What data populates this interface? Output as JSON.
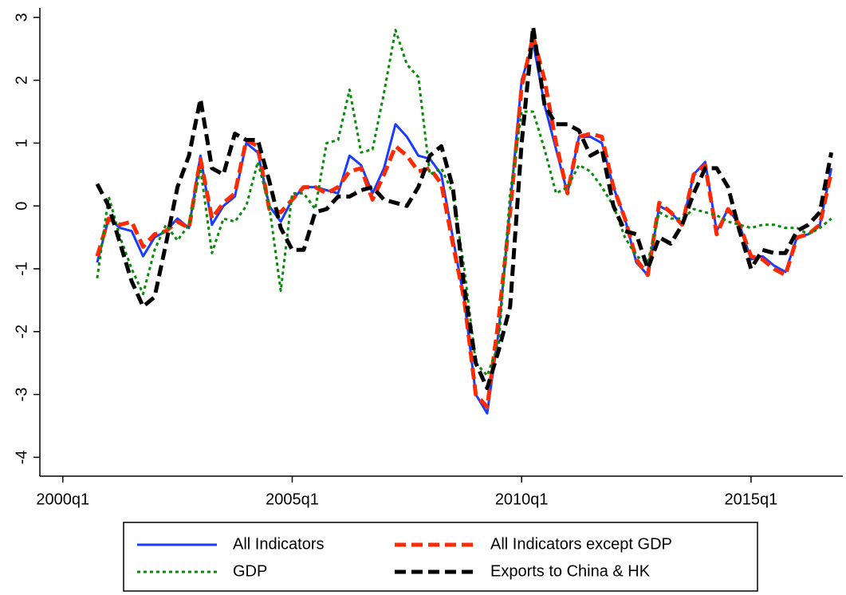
{
  "chart_data": {
    "type": "line",
    "x": [
      "2000q4",
      "2001q1",
      "2001q2",
      "2001q3",
      "2001q4",
      "2002q1",
      "2002q2",
      "2002q3",
      "2002q4",
      "2003q1",
      "2003q2",
      "2003q3",
      "2003q4",
      "2004q1",
      "2004q2",
      "2004q3",
      "2004q4",
      "2005q1",
      "2005q2",
      "2005q3",
      "2005q4",
      "2006q1",
      "2006q2",
      "2006q3",
      "2006q4",
      "2007q1",
      "2007q2",
      "2007q3",
      "2007q4",
      "2008q1",
      "2008q2",
      "2008q3",
      "2008q4",
      "2009q1",
      "2009q2",
      "2009q3",
      "2009q4",
      "2010q1",
      "2010q2",
      "2010q3",
      "2010q4",
      "2011q1",
      "2011q2",
      "2011q3",
      "2011q4",
      "2012q1",
      "2012q2",
      "2012q3",
      "2012q4",
      "2013q1",
      "2013q2",
      "2013q3",
      "2013q4",
      "2014q1",
      "2014q2",
      "2014q3",
      "2014q4",
      "2015q1",
      "2015q2",
      "2015q3",
      "2015q4",
      "2016q1",
      "2016q2",
      "2016q3",
      "2016q4"
    ],
    "series": [
      {
        "name": "All Indicators",
        "color": "#1a3cff",
        "values": [
          -0.9,
          -0.2,
          -0.35,
          -0.4,
          -0.8,
          -0.5,
          -0.4,
          -0.2,
          -0.35,
          0.8,
          -0.3,
          0.0,
          0.15,
          1.0,
          0.85,
          0.0,
          -0.25,
          0.1,
          0.3,
          0.3,
          0.25,
          0.2,
          0.8,
          0.65,
          0.2,
          0.6,
          1.3,
          1.1,
          0.8,
          0.75,
          0.5,
          -0.5,
          -1.5,
          -3.0,
          -3.3,
          -2.0,
          0.0,
          2.0,
          2.6,
          1.6,
          0.9,
          0.2,
          1.1,
          1.1,
          1.0,
          0.3,
          -0.2,
          -0.9,
          -1.1,
          0.0,
          -0.1,
          -0.3,
          0.5,
          0.7,
          -0.4,
          -0.05,
          -0.3,
          -0.85,
          -0.8,
          -0.95,
          -1.05,
          -0.5,
          -0.45,
          -0.3,
          0.6
        ]
      },
      {
        "name": "All Indicators except GDP",
        "color": "#ff2a00",
        "values": [
          -0.8,
          -0.2,
          -0.3,
          -0.25,
          -0.65,
          -0.45,
          -0.4,
          -0.25,
          -0.35,
          0.75,
          -0.2,
          0.05,
          0.2,
          1.05,
          0.95,
          -0.05,
          -0.1,
          0.1,
          0.3,
          0.3,
          0.2,
          0.3,
          0.55,
          0.6,
          0.1,
          0.5,
          0.95,
          0.8,
          0.55,
          0.6,
          0.35,
          -0.6,
          -1.5,
          -3.0,
          -3.2,
          -1.8,
          -0.1,
          1.9,
          2.7,
          2.0,
          1.0,
          0.2,
          1.1,
          1.15,
          1.1,
          0.3,
          -0.2,
          -0.85,
          -1.1,
          0.05,
          -0.1,
          -0.3,
          0.5,
          0.65,
          -0.45,
          -0.05,
          -0.3,
          -0.8,
          -0.85,
          -1.0,
          -1.1,
          -0.5,
          -0.45,
          -0.3,
          0.55
        ]
      },
      {
        "name": "GDP",
        "color": "#0a8a0a",
        "values": [
          -1.15,
          0.15,
          -0.5,
          -1.0,
          -1.4,
          -0.7,
          -0.3,
          -0.55,
          -0.3,
          0.6,
          -0.75,
          -0.2,
          -0.25,
          0.0,
          0.7,
          0.0,
          -1.35,
          0.2,
          0.2,
          -0.05,
          1.0,
          1.05,
          1.85,
          0.85,
          0.9,
          1.8,
          2.8,
          2.25,
          2.05,
          0.5,
          0.6,
          0.2,
          -1.0,
          -2.5,
          -2.7,
          -2.2,
          0.2,
          1.5,
          1.5,
          0.9,
          0.2,
          0.3,
          0.65,
          0.55,
          0.3,
          0.0,
          -0.5,
          -0.8,
          -0.9,
          -0.1,
          -0.2,
          -0.2,
          -0.05,
          -0.1,
          -0.15,
          -0.25,
          -0.3,
          -0.35,
          -0.3,
          -0.3,
          -0.35,
          -0.35,
          -0.45,
          -0.35,
          -0.2
        ]
      },
      {
        "name": "Exports to China & HK",
        "color": "#000000",
        "values": [
          0.35,
          0.0,
          -0.6,
          -1.2,
          -1.6,
          -1.45,
          -0.6,
          0.3,
          0.8,
          1.7,
          0.6,
          0.5,
          1.15,
          1.05,
          1.05,
          0.4,
          -0.35,
          -0.7,
          -0.7,
          -0.1,
          -0.05,
          0.15,
          0.15,
          0.25,
          0.3,
          0.1,
          0.05,
          0.0,
          0.3,
          0.8,
          0.95,
          0.3,
          -1.3,
          -2.5,
          -2.9,
          -2.3,
          -1.6,
          1.0,
          2.85,
          1.6,
          1.3,
          1.3,
          1.2,
          0.8,
          0.9,
          0.0,
          -0.4,
          -0.45,
          -1.0,
          -0.5,
          -0.6,
          -0.3,
          0.2,
          0.6,
          0.6,
          0.3,
          -0.4,
          -1.0,
          -0.7,
          -0.75,
          -0.75,
          -0.4,
          -0.3,
          -0.1,
          0.85
        ]
      }
    ],
    "xlim": [
      "1999q3",
      "2017q1"
    ],
    "xticks": [
      "2000q1",
      "2005q1",
      "2010q1",
      "2015q1"
    ],
    "ylim": [
      -4.3,
      3.15
    ],
    "yticks": [
      -4,
      -3,
      -2,
      -1,
      0,
      1,
      2,
      3
    ]
  }
}
